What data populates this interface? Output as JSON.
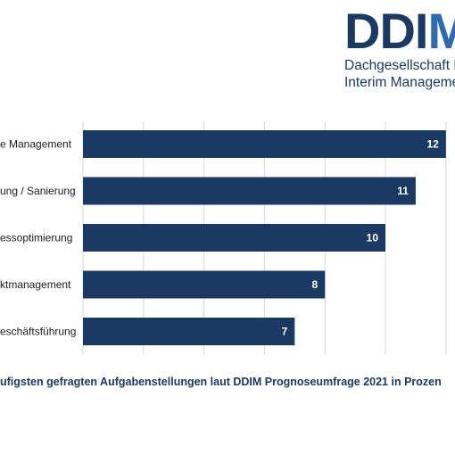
{
  "logo": {
    "mark_text": "DDIM",
    "line1": "Dachgesellschaft D",
    "line2": "Interim Manageme"
  },
  "colors": {
    "brand_dark": "#1b3a63",
    "brand_accent": "#2f6bb3",
    "bar": "#1b3a63",
    "gridline": "#d9d9d9",
    "label_text": "#1a1a1a",
    "value_text": "#ffffff"
  },
  "caption": "ufigsten gefragten Aufgabenstellungen laut DDIM Prognoseumfrage 2021 in Prozen",
  "chart_data": {
    "type": "bar",
    "orientation": "horizontal",
    "categories": [
      "e Management",
      "ung / Sanierung",
      "essoptimierung",
      "ktmanagement",
      "eschäftsführung"
    ],
    "values": [
      12,
      11,
      10,
      8,
      7
    ],
    "value_labels": [
      "12",
      "11",
      "10",
      "8",
      "7"
    ],
    "xlim": [
      0,
      12.3
    ],
    "grid": true
  }
}
